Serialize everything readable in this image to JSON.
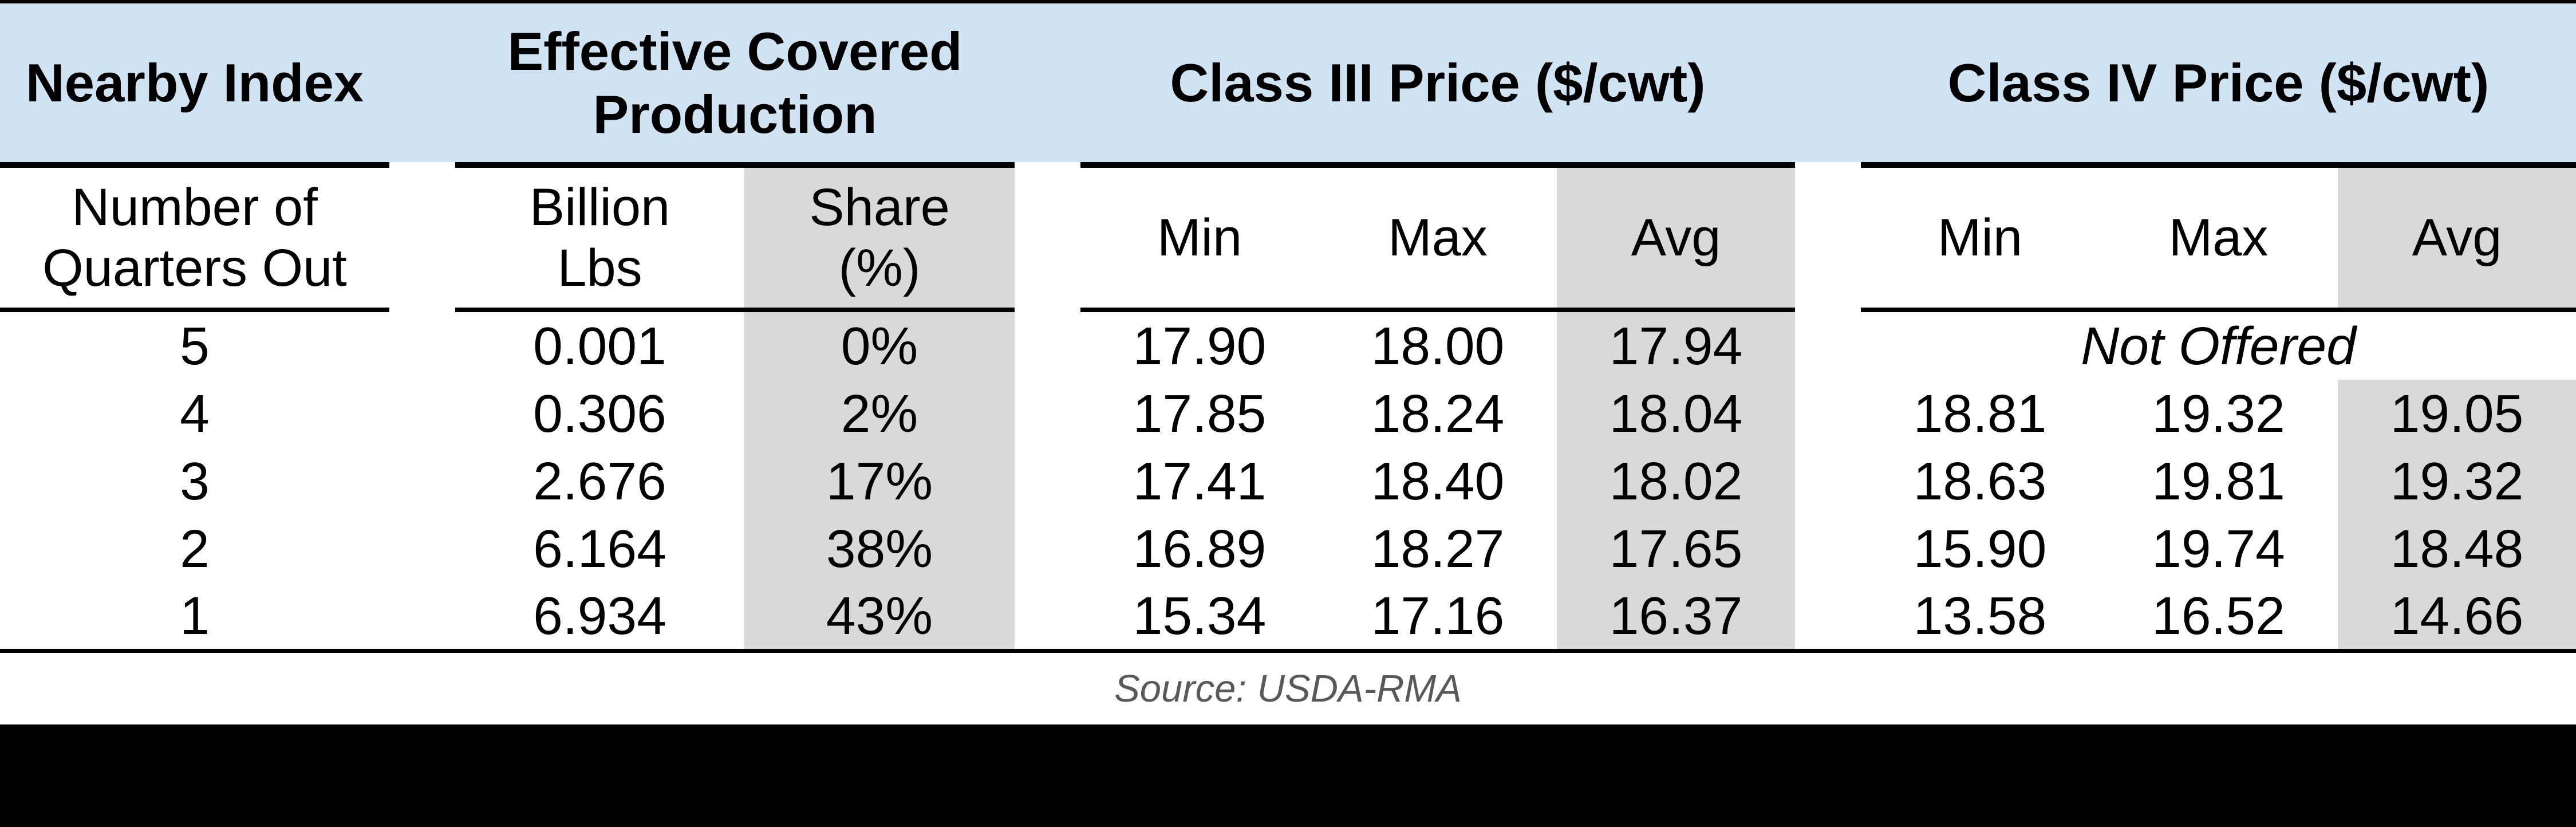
{
  "header_groups": {
    "nearby_index": "Nearby Index",
    "effective_covered_production": "Effective Covered\nProduction",
    "class_iii": "Class III Price ($/cwt)",
    "class_iv": "Class IV Price ($/cwt)"
  },
  "subheader": {
    "quarters": "Number of\nQuarters Out",
    "billion_lbs": "Billion\nLbs",
    "share": "Share\n(%)",
    "c3_min": "Min",
    "c3_max": "Max",
    "c3_avg": "Avg",
    "c4_min": "Min",
    "c4_max": "Max",
    "c4_avg": "Avg"
  },
  "rows": [
    {
      "quarters": "5",
      "billion_lbs": "0.001",
      "share": "0%",
      "c3_min": "17.90",
      "c3_max": "18.00",
      "c3_avg": "17.94",
      "c4_note": "Not Offered"
    },
    {
      "quarters": "4",
      "billion_lbs": "0.306",
      "share": "2%",
      "c3_min": "17.85",
      "c3_max": "18.24",
      "c3_avg": "18.04",
      "c4_min": "18.81",
      "c4_max": "19.32",
      "c4_avg": "19.05"
    },
    {
      "quarters": "3",
      "billion_lbs": "2.676",
      "share": "17%",
      "c3_min": "17.41",
      "c3_max": "18.40",
      "c3_avg": "18.02",
      "c4_min": "18.63",
      "c4_max": "19.81",
      "c4_avg": "19.32"
    },
    {
      "quarters": "2",
      "billion_lbs": "6.164",
      "share": "38%",
      "c3_min": "16.89",
      "c3_max": "18.27",
      "c3_avg": "17.65",
      "c4_min": "15.90",
      "c4_max": "19.74",
      "c4_avg": "18.48"
    },
    {
      "quarters": "1",
      "billion_lbs": "6.934",
      "share": "43%",
      "c3_min": "15.34",
      "c3_max": "17.16",
      "c3_avg": "16.37",
      "c4_min": "13.58",
      "c4_max": "16.52",
      "c4_avg": "14.66"
    }
  ],
  "source_note": "Source: USDA-RMA",
  "colors": {
    "header_blue": "#cfe3f3",
    "shade_gray": "#d9d9d9",
    "border_black": "#000000",
    "source_text_gray": "#595959"
  },
  "chart_data": {
    "type": "table",
    "column_groups": [
      "Nearby Index",
      "Effective Covered Production",
      "Class III Price ($/cwt)",
      "Class IV Price ($/cwt)"
    ],
    "columns": [
      "Number of Quarters Out",
      "Billion Lbs",
      "Share (%)",
      "Class III Min",
      "Class III Max",
      "Class III Avg",
      "Class IV Min",
      "Class IV Max",
      "Class IV Avg"
    ],
    "rows": [
      [
        5,
        0.001,
        "0%",
        17.9,
        18.0,
        17.94,
        "Not Offered",
        "Not Offered",
        "Not Offered"
      ],
      [
        4,
        0.306,
        "2%",
        17.85,
        18.24,
        18.04,
        18.81,
        19.32,
        19.05
      ],
      [
        3,
        2.676,
        "17%",
        17.41,
        18.4,
        18.02,
        18.63,
        19.81,
        19.32
      ],
      [
        2,
        6.164,
        "38%",
        16.89,
        18.27,
        17.65,
        15.9,
        19.74,
        18.48
      ],
      [
        1,
        6.934,
        "43%",
        15.34,
        17.16,
        16.37,
        13.58,
        16.52,
        14.66
      ]
    ],
    "source": "Source: USDA-RMA"
  }
}
